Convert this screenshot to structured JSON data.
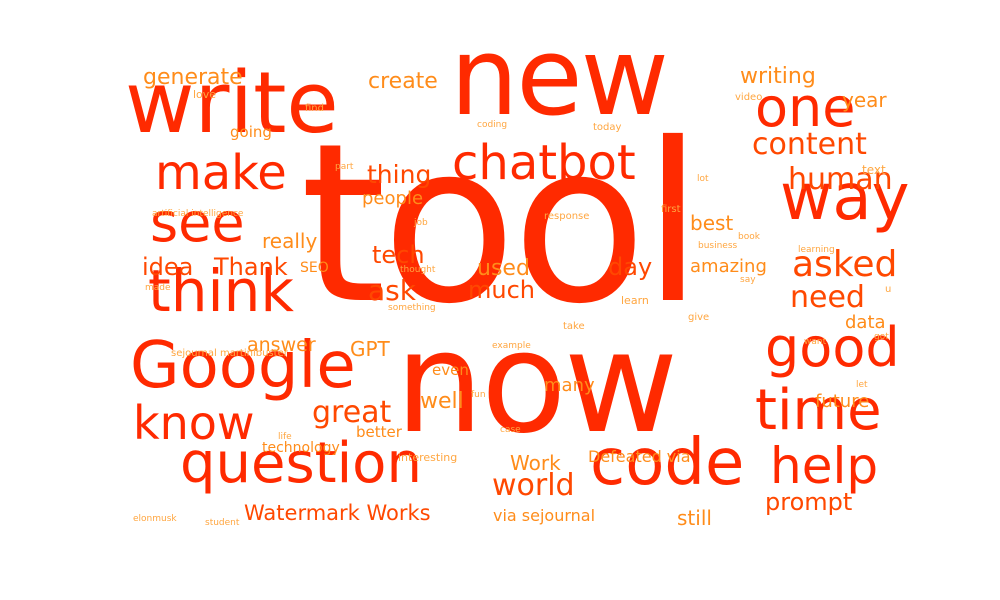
{
  "colors": {
    "background": "#ffffff",
    "dark": "#ff2a00",
    "mid": "#ff4800",
    "light": "#ff8c1a",
    "faint": "#ffa640"
  },
  "words": [
    "tool",
    "now",
    "new",
    "write",
    "code",
    "Google",
    "question",
    "chatbot",
    "think",
    "see",
    "make",
    "way",
    "one",
    "time",
    "know",
    "good",
    "help",
    "content",
    "human",
    "world",
    "asked",
    "need",
    "great",
    "prompt",
    "thing",
    "idea",
    "Thank",
    "people",
    "tech",
    "really",
    "best",
    "ask",
    "much",
    "used",
    "day",
    "amazing",
    "data",
    "future",
    "well",
    "answer",
    "GPT",
    "Work",
    "Defeated via",
    "Watermark Works",
    "still",
    "via sejournal",
    "generate",
    "create",
    "writing",
    "year",
    "going",
    "many",
    "even",
    "SEO",
    "better",
    "technology",
    "interesting",
    "love",
    "find",
    "coding",
    "today",
    "video",
    "part",
    "text",
    "lot",
    "artificial intelligence",
    "job",
    "response",
    "first",
    "book",
    "business",
    "learning",
    "say",
    "thought",
    "made",
    "something",
    "learn",
    "take",
    "give",
    "got",
    "want",
    "sejournal martinibuster",
    "example",
    "let",
    "fun",
    "case",
    "life",
    "elonmusk",
    "student",
    "u"
  ]
}
